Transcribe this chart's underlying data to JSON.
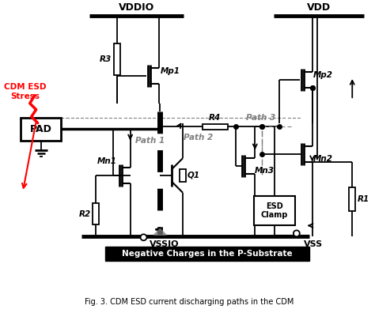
{
  "title": "Fig. 3. CDM ESD current discharging paths in the CDM",
  "vddio_label": "VDDIO",
  "vdd_label": "VDD",
  "vssio_label": "VSSIO",
  "vss_label": "VSS",
  "pad_label": "PAD",
  "esd_clamp_label": "ESD\nClamp",
  "cdm_esd_label": "CDM ESD\nStress",
  "substrate_label": "Negative Charges in the P-Substrate",
  "path1_label": "Path 1",
  "path2_label": "Path 2",
  "path3_label": "Path 3",
  "R3": "R3",
  "R4": "R4",
  "R2": "R2",
  "R1": "R1",
  "Mp1": "Mp1",
  "Mp2": "Mp2",
  "Mn1": "Mn1",
  "Mn2": "Mn2",
  "Mn3": "Mn3",
  "Q1": "Q1",
  "bg_color": "#ffffff"
}
